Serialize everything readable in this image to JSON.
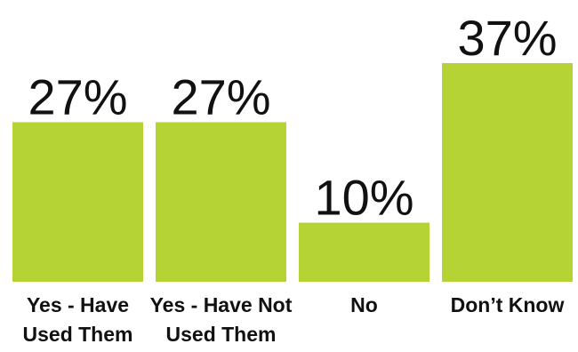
{
  "chart_data": {
    "type": "bar",
    "categories": [
      [
        "Yes - Have",
        "Used Them"
      ],
      [
        "Yes - Have Not",
        "Used Them"
      ],
      [
        "No"
      ],
      [
        "Don’t Know"
      ]
    ],
    "values": [
      27,
      27,
      10,
      37
    ],
    "value_labels": [
      "27%",
      "27%",
      "10%",
      "37%"
    ],
    "bar_color": "#b5d334",
    "title": "",
    "xlabel": "",
    "ylabel": "",
    "ylim": [
      0,
      37
    ],
    "grid": false,
    "legend": "none"
  }
}
